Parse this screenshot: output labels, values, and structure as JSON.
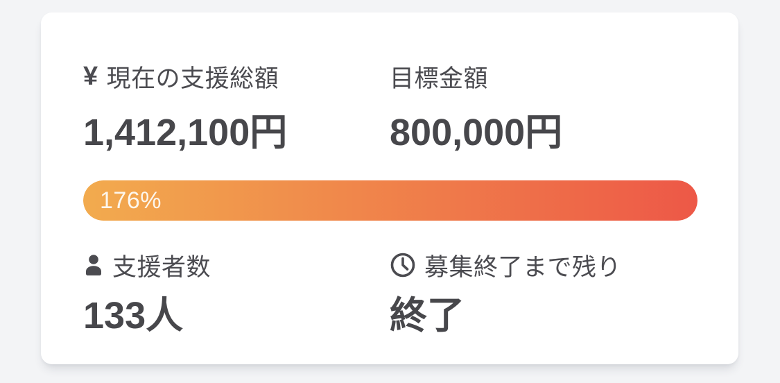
{
  "colors": {
    "page_bg": "#f3f4f6",
    "card_bg": "#ffffff",
    "label_color": "#4b4b50",
    "value_color": "#47474b",
    "bar_gradient_start": "#f2ab4e",
    "bar_gradient_end": "#ed5847",
    "bar_text": "#fdf6ec"
  },
  "funding": {
    "current": {
      "icon": "yen-icon",
      "icon_glyph": "¥",
      "label": "現在の支援総額",
      "value": "1,412,100円"
    },
    "goal": {
      "label": "目標金額",
      "value": "800,000円"
    },
    "progress": {
      "percent": 176,
      "label": "176%"
    },
    "supporters": {
      "icon": "person-icon",
      "label": "支援者数",
      "value": "133人"
    },
    "deadline": {
      "icon": "clock-icon",
      "label": "募集終了まで残り",
      "value": "終了"
    }
  }
}
